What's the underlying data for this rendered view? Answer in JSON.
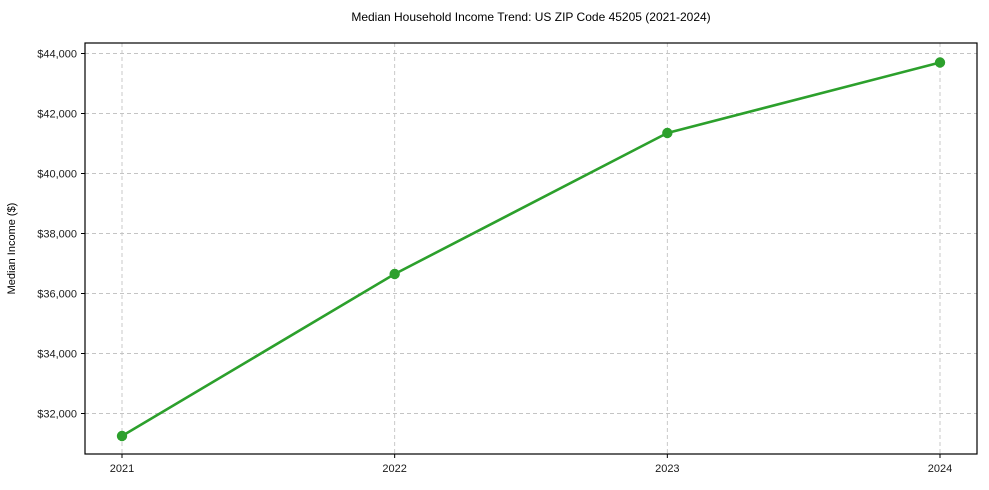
{
  "chart_data": {
    "type": "line",
    "title": "Median Household Income Trend: US ZIP Code 45205 (2021-2024)",
    "xlabel": "",
    "ylabel": "Median Income ($)",
    "x": [
      2021,
      2022,
      2023,
      2024
    ],
    "series": [
      {
        "name": "Median household income",
        "values": [
          31250,
          36650,
          41350,
          43700
        ]
      }
    ],
    "xtick_labels": [
      "2021",
      "2022",
      "2023",
      "2024"
    ],
    "ytick_values": [
      32000,
      34000,
      36000,
      38000,
      40000,
      42000,
      44000
    ],
    "ytick_labels": [
      "$32,000",
      "$34,000",
      "$36,000",
      "$38,000",
      "$40,000",
      "$42,000",
      "$44,000"
    ],
    "ylim": [
      30650,
      44350
    ],
    "grid": "dashed, both axes",
    "legend": "none",
    "colors": {
      "line": "#2ca02c",
      "marker": "#2ca02c",
      "grid": "#c4c4c4",
      "frame": "#000000",
      "background": "#ffffff"
    }
  }
}
